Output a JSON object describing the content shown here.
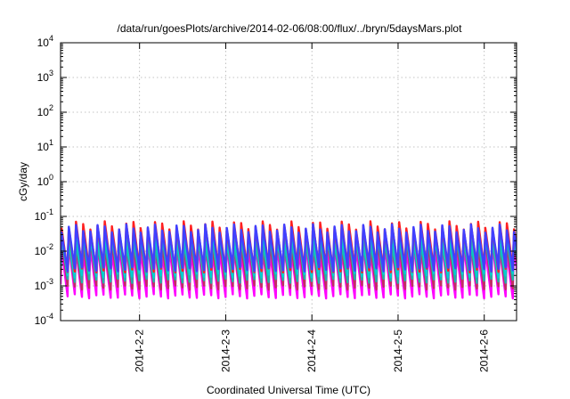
{
  "chart_data": {
    "type": "line",
    "title": "/data/run/goesPlots/archive/2014-02-06/08:00/flux/../bryn/5daysMars.plot",
    "xlabel": "Coordinated Universal Time (UTC)",
    "ylabel": "cGy/day",
    "x_start": "2014-02-01 02:00",
    "x_end": "2014-02-06 09:00",
    "x_ticks": [
      {
        "date": "2014-02-02",
        "label": "2014-2-2"
      },
      {
        "date": "2014-02-03",
        "label": "2014-2-3"
      },
      {
        "date": "2014-02-04",
        "label": "2014-2-4"
      },
      {
        "date": "2014-02-05",
        "label": "2014-2-5"
      },
      {
        "date": "2014-02-06",
        "label": "2014-2-6"
      }
    ],
    "y_scale": "log",
    "ylim": [
      0.0001,
      10000
    ],
    "y_ticks": [
      {
        "value": 0.0001,
        "base": "10",
        "exp": "-4"
      },
      {
        "value": 0.001,
        "base": "10",
        "exp": "-3"
      },
      {
        "value": 0.01,
        "base": "10",
        "exp": "-2"
      },
      {
        "value": 0.1,
        "base": "10",
        "exp": "-1"
      },
      {
        "value": 1,
        "base": "10",
        "exp": "0"
      },
      {
        "value": 10,
        "base": "10",
        "exp": "1"
      },
      {
        "value": 100,
        "base": "10",
        "exp": "2"
      },
      {
        "value": 1000,
        "base": "10",
        "exp": "3"
      },
      {
        "value": 10000,
        "base": "10",
        "exp": "4"
      }
    ],
    "grid": true,
    "legend": "none",
    "oscillation_period_hours": 2,
    "series": [
      {
        "color": "#ff00ff",
        "low": 0.0005,
        "high": 0.012
      },
      {
        "color": "#c03060",
        "low": 0.0009,
        "high": 0.018
      },
      {
        "color": "#20b2aa",
        "low": 0.0014,
        "high": 0.022
      },
      {
        "color": "#00d0d0",
        "low": 0.002,
        "high": 0.03
      },
      {
        "color": "#ff2020",
        "low": 0.0028,
        "high": 0.055
      },
      {
        "color": "#4040ff",
        "low": 0.003,
        "high": 0.045
      }
    ]
  }
}
